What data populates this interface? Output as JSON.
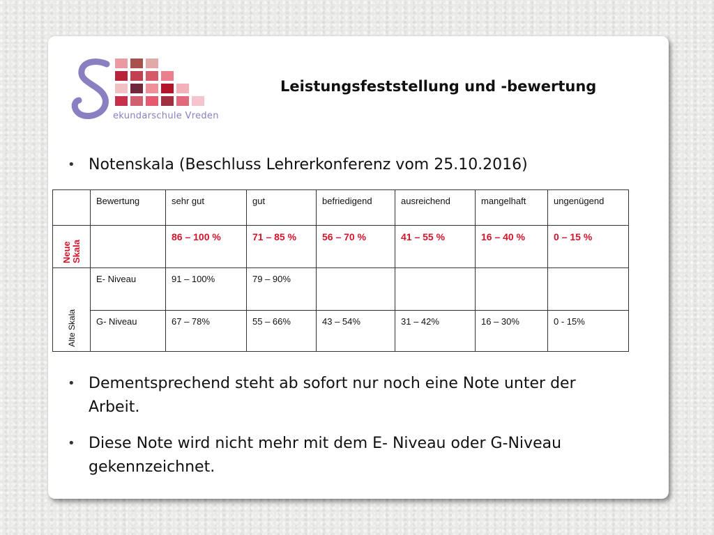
{
  "header": {
    "logo_text": "ekundarschule Vreden",
    "title": "Leistungsfeststellung  und -bewertung"
  },
  "bullets": [
    "Notenskala (Beschluss Lehrerkonferenz vom 25.10.2016)",
    "Dementsprechend steht ab sofort nur noch eine Note unter der Arbeit.",
    "Diese Note wird nicht mehr mit dem E- Niveau oder G-Niveau gekennzeichnet."
  ],
  "table": {
    "headers": [
      "",
      "Bewertung",
      "sehr gut",
      "gut",
      "befriedigend",
      "ausreichend",
      "mangelhaft",
      "ungenügend"
    ],
    "neue_skala_label": "Neue Skala",
    "neue_skala_values": [
      "86 – 100 %",
      "71 – 85 %",
      "56 – 70 %",
      "41 – 55 %",
      "16 – 40 %",
      "0 – 15 %"
    ],
    "alte_skala_label": "Alte Skala",
    "e_niveau": {
      "label": "E- Niveau",
      "values": [
        "91 – 100%",
        "79 – 90%",
        "",
        "",
        "",
        ""
      ]
    },
    "g_niveau": {
      "label": "G- Niveau",
      "values": [
        "67 – 78%",
        "55 – 66%",
        "43 – 54%",
        "31 – 42%",
        "16 – 30%",
        "0 - 15%"
      ]
    }
  },
  "colors": {
    "accent_red": "#d4142a",
    "logo_purple": "#8a7fc0"
  }
}
